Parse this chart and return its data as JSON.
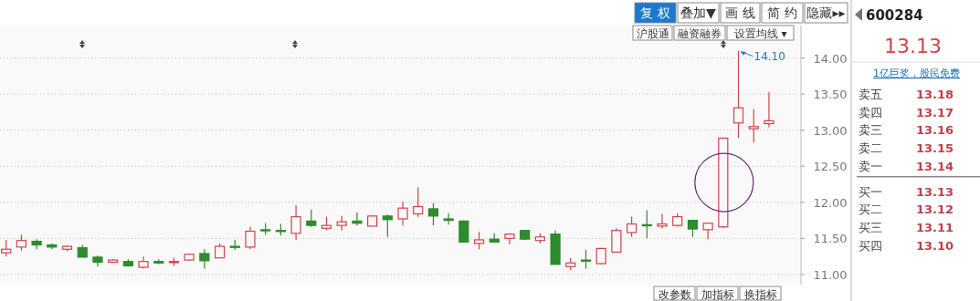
{
  "chart_data": [
    {
      "type": "candlestick",
      "categories": [
        null,
        null,
        null,
        null,
        null,
        null,
        null,
        null,
        null,
        null,
        null,
        null,
        null,
        null,
        null,
        null,
        null,
        null,
        null,
        null,
        null,
        null,
        null,
        null,
        null,
        null,
        null,
        null,
        null,
        null,
        null,
        null,
        null,
        null,
        null,
        null,
        null,
        null,
        null,
        null,
        null,
        null,
        null,
        null,
        null,
        null,
        null,
        null,
        null,
        null,
        null
      ],
      "ohlc": [
        [
          11.3,
          11.48,
          11.25,
          11.35
        ],
        [
          11.38,
          11.55,
          11.33,
          11.47
        ],
        [
          11.46,
          11.49,
          11.35,
          11.41
        ],
        [
          11.41,
          11.43,
          11.35,
          11.38
        ],
        [
          11.35,
          11.4,
          11.32,
          11.39
        ],
        [
          11.37,
          11.41,
          11.24,
          11.24
        ],
        [
          11.24,
          11.26,
          11.11,
          11.17
        ],
        [
          11.17,
          11.21,
          11.16,
          11.2
        ],
        [
          11.18,
          11.21,
          11.11,
          11.12
        ],
        [
          11.1,
          11.25,
          11.08,
          11.18
        ],
        [
          11.18,
          11.21,
          11.14,
          11.16
        ],
        [
          11.17,
          11.23,
          11.12,
          11.18
        ],
        [
          11.2,
          11.28,
          11.19,
          11.28
        ],
        [
          11.29,
          11.35,
          11.08,
          11.19
        ],
        [
          11.23,
          11.43,
          11.23,
          11.39
        ],
        [
          11.39,
          11.48,
          11.34,
          11.38
        ],
        [
          11.38,
          11.66,
          11.35,
          11.6
        ],
        [
          11.62,
          11.71,
          11.55,
          11.61
        ],
        [
          11.61,
          11.7,
          11.54,
          11.6
        ],
        [
          11.57,
          11.96,
          11.48,
          11.8
        ],
        [
          11.74,
          11.9,
          11.66,
          11.68
        ],
        [
          11.64,
          11.8,
          11.61,
          11.68
        ],
        [
          11.68,
          11.81,
          11.61,
          11.73
        ],
        [
          11.74,
          11.86,
          11.68,
          11.71
        ],
        [
          11.67,
          11.82,
          11.67,
          11.81
        ],
        [
          11.81,
          11.83,
          11.52,
          11.76
        ],
        [
          11.77,
          12.01,
          11.68,
          11.92
        ],
        [
          11.84,
          12.21,
          11.8,
          11.94
        ],
        [
          11.91,
          11.99,
          11.68,
          11.81
        ],
        [
          11.77,
          11.85,
          11.69,
          11.75
        ],
        [
          11.74,
          11.75,
          11.45,
          11.45
        ],
        [
          11.43,
          11.59,
          11.35,
          11.48
        ],
        [
          11.49,
          11.57,
          11.44,
          11.45
        ],
        [
          11.5,
          11.57,
          11.42,
          11.56
        ],
        [
          11.61,
          11.61,
          11.48,
          11.49
        ],
        [
          11.47,
          11.57,
          11.43,
          11.52
        ],
        [
          11.56,
          11.61,
          11.14,
          11.14
        ],
        [
          11.11,
          11.23,
          11.06,
          11.16
        ],
        [
          11.2,
          11.34,
          11.08,
          11.19
        ],
        [
          11.15,
          11.37,
          11.14,
          11.36
        ],
        [
          11.31,
          11.64,
          11.31,
          11.61
        ],
        [
          11.58,
          11.8,
          11.52,
          11.7
        ],
        [
          11.69,
          11.89,
          11.5,
          11.68
        ],
        [
          11.67,
          11.84,
          11.64,
          11.7
        ],
        [
          11.68,
          11.85,
          11.66,
          11.8
        ],
        [
          11.75,
          11.75,
          11.52,
          11.63
        ],
        [
          11.62,
          11.71,
          11.49,
          11.71
        ],
        [
          11.66,
          12.89,
          11.64,
          12.89
        ],
        [
          13.1,
          14.1,
          12.89,
          13.31
        ],
        [
          13.02,
          13.29,
          12.83,
          13.05
        ],
        [
          13.09,
          13.53,
          13.04,
          13.13
        ]
      ],
      "ylim": [
        10.86,
        14.45
      ],
      "yticks": [
        {
          "value": 11,
          "label": "11.00"
        },
        {
          "value": 11.5,
          "label": "11.50"
        },
        {
          "value": 12,
          "label": "12.00"
        },
        {
          "value": 12.5,
          "label": "12.50"
        },
        {
          "value": 13,
          "label": "13.00"
        },
        {
          "value": 13.5,
          "label": "13.50"
        },
        {
          "value": 14,
          "label": "14.00"
        }
      ],
      "grid": "y",
      "annotations": [
        "复 权",
        "叠加▼",
        "画 线",
        "简 约",
        "隐藏▸▸",
        "沪股通",
        "融资融券",
        "设置均线 ▾",
        "改参数",
        "加指标",
        "换指标",
        "14.10",
        "卖五 13.18",
        "卖四 13.17",
        "卖三 13.16",
        "卖二 13.15",
        "卖一 13.14",
        "买一 13.13",
        "买二 13.12",
        "买三 13.11",
        "买四 13.10"
      ]
    },
    {
      "type": "other",
      "title": "600284",
      "subtitle": "13.13",
      "annotations": [
        "1亿巨奖，股民免费"
      ]
    }
  ]
}
